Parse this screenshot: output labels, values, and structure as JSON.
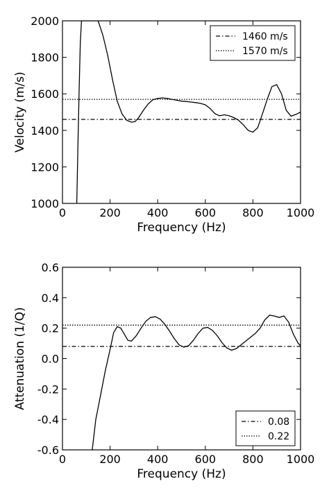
{
  "chart_data": [
    {
      "type": "line",
      "xlabel": "Frequency (Hz)",
      "ylabel": "Velocity (m/s)",
      "xlim": [
        0,
        1000
      ],
      "ylim": [
        1000,
        2000
      ],
      "xticks": [
        0,
        200,
        400,
        600,
        800,
        1000
      ],
      "yticks": [
        1000,
        1200,
        1400,
        1600,
        1800,
        2000
      ],
      "grid": false,
      "legend_position": "top-right",
      "series": [
        {
          "style": "solid",
          "x": [
            60,
            65,
            70,
            75,
            80,
            150,
            170,
            190,
            210,
            230,
            250,
            270,
            290,
            305,
            320,
            340,
            360,
            380,
            400,
            420,
            440,
            460,
            480,
            500,
            520,
            540,
            560,
            580,
            600,
            620,
            640,
            660,
            680,
            700,
            720,
            740,
            760,
            780,
            800,
            820,
            840,
            860,
            880,
            900,
            920,
            940,
            960,
            980,
            1000
          ],
          "y": [
            1000,
            1320,
            1620,
            1880,
            2000,
            2000,
            1920,
            1810,
            1680,
            1560,
            1490,
            1455,
            1445,
            1448,
            1470,
            1510,
            1545,
            1568,
            1575,
            1578,
            1575,
            1570,
            1565,
            1560,
            1558,
            1555,
            1552,
            1548,
            1540,
            1520,
            1492,
            1480,
            1485,
            1480,
            1470,
            1455,
            1430,
            1400,
            1390,
            1415,
            1490,
            1570,
            1640,
            1650,
            1600,
            1510,
            1478,
            1487,
            1500
          ]
        },
        {
          "name": "1460 m/s",
          "style": "dashdot",
          "x": [
            0,
            1000
          ],
          "y": [
            1460,
            1460
          ]
        },
        {
          "name": "1570 m/s",
          "style": "dotted",
          "x": [
            0,
            1000
          ],
          "y": [
            1570,
            1570
          ]
        }
      ]
    },
    {
      "type": "line",
      "xlabel": "Frequency (Hz)",
      "ylabel": "Attenuation (1/Q)",
      "xlim": [
        0,
        1000
      ],
      "ylim": [
        -0.6,
        0.6
      ],
      "xticks": [
        0,
        200,
        400,
        600,
        800,
        1000
      ],
      "yticks": [
        -0.6,
        -0.4,
        -0.2,
        0.0,
        0.2,
        0.4,
        0.6
      ],
      "grid": false,
      "legend_position": "bottom-right",
      "series": [
        {
          "style": "solid",
          "x": [
            125,
            140,
            160,
            180,
            200,
            215,
            230,
            245,
            260,
            275,
            290,
            310,
            330,
            350,
            370,
            390,
            410,
            430,
            450,
            470,
            490,
            510,
            530,
            550,
            570,
            590,
            610,
            630,
            650,
            670,
            690,
            710,
            730,
            750,
            770,
            790,
            810,
            830,
            850,
            870,
            890,
            910,
            930,
            950,
            970,
            990,
            1000
          ],
          "y": [
            -0.6,
            -0.4,
            -0.24,
            -0.08,
            0.06,
            0.17,
            0.21,
            0.2,
            0.16,
            0.12,
            0.115,
            0.15,
            0.2,
            0.245,
            0.27,
            0.275,
            0.26,
            0.225,
            0.18,
            0.13,
            0.09,
            0.075,
            0.085,
            0.12,
            0.165,
            0.2,
            0.205,
            0.185,
            0.15,
            0.105,
            0.07,
            0.055,
            0.065,
            0.09,
            0.115,
            0.14,
            0.165,
            0.2,
            0.255,
            0.285,
            0.28,
            0.27,
            0.28,
            0.24,
            0.16,
            0.1,
            0.085
          ]
        },
        {
          "name": "0.08",
          "style": "dashdot",
          "x": [
            0,
            1000
          ],
          "y": [
            0.08,
            0.08
          ]
        },
        {
          "name": "0.22",
          "style": "dotted",
          "x": [
            0,
            1000
          ],
          "y": [
            0.22,
            0.22
          ]
        }
      ]
    }
  ]
}
